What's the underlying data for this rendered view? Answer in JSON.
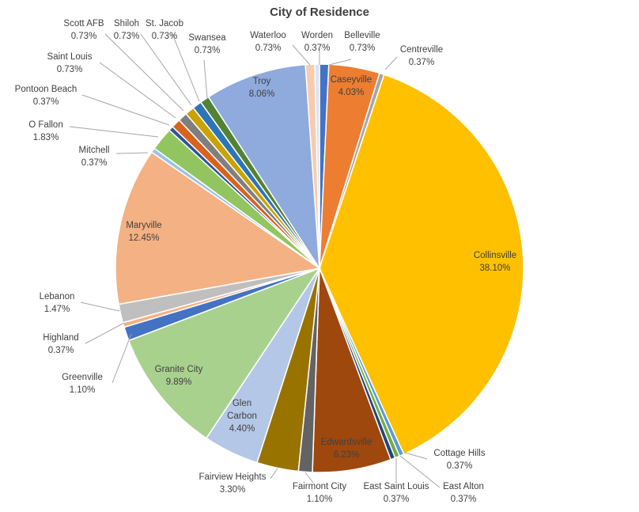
{
  "chart_data": {
    "type": "pie",
    "title": "City of Residence",
    "slices": [
      {
        "name": "Belleville",
        "value": 0.73,
        "label": "0.73%",
        "color": "#4472c4"
      },
      {
        "name": "Caseyville",
        "value": 4.03,
        "label": "4.03%",
        "color": "#ed7d31"
      },
      {
        "name": "Centreville",
        "value": 0.37,
        "label": "0.37%",
        "color": "#a5a5a5"
      },
      {
        "name": "Collinsville",
        "value": 38.1,
        "label": "38.10%",
        "color": "#ffc000"
      },
      {
        "name": "Cottage Hills",
        "value": 0.37,
        "label": "0.37%",
        "color": "#5b9bd5"
      },
      {
        "name": "East Alton",
        "value": 0.37,
        "label": "0.37%",
        "color": "#70ad47"
      },
      {
        "name": "East Saint Louis",
        "value": 0.37,
        "label": "0.37%",
        "color": "#264478"
      },
      {
        "name": "Edwardsville",
        "value": 6.23,
        "label": "6.23%",
        "color": "#9e480e"
      },
      {
        "name": "Fairmont City",
        "value": 1.1,
        "label": "1.10%",
        "color": "#636363"
      },
      {
        "name": "Fairview Heights",
        "value": 3.3,
        "label": "3.30%",
        "color": "#997300"
      },
      {
        "name": "Glen Carbon",
        "value": 4.4,
        "label": "4.40%",
        "color": "#b4c7e7"
      },
      {
        "name": "Granite City",
        "value": 9.89,
        "label": "9.89%",
        "color": "#a9d18e"
      },
      {
        "name": "Greenville",
        "value": 1.1,
        "label": "1.10%",
        "color": "#4472c4"
      },
      {
        "name": "Highland",
        "value": 0.37,
        "label": "0.37%",
        "color": "#f4b183"
      },
      {
        "name": "Lebanon",
        "value": 1.47,
        "label": "1.47%",
        "color": "#bfbfbf"
      },
      {
        "name": "Maryville",
        "value": 12.45,
        "label": "12.45%",
        "color": "#f4b183"
      },
      {
        "name": "Mitchell",
        "value": 0.37,
        "label": "0.37%",
        "color": "#9dc3e6"
      },
      {
        "name": "O Fallon",
        "value": 1.83,
        "label": "1.83%",
        "color": "#92c560"
      },
      {
        "name": "Pontoon Beach",
        "value": 0.37,
        "label": "0.37%",
        "color": "#2f5597"
      },
      {
        "name": "Saint Louis",
        "value": 0.73,
        "label": "0.73%",
        "color": "#d9621d"
      },
      {
        "name": "Scott AFB",
        "value": 0.73,
        "label": "0.73%",
        "color": "#7f7f7f"
      },
      {
        "name": "Shiloh",
        "value": 0.73,
        "label": "0.73%",
        "color": "#c9a300"
      },
      {
        "name": "St. Jacob",
        "value": 0.73,
        "label": "0.73%",
        "color": "#2e75b6"
      },
      {
        "name": "Swansea",
        "value": 0.73,
        "label": "0.73%",
        "color": "#548235"
      },
      {
        "name": "Troy",
        "value": 8.06,
        "label": "8.06%",
        "color": "#8faadc"
      },
      {
        "name": "Waterloo",
        "value": 0.73,
        "label": "0.73%",
        "color": "#f8cbad"
      },
      {
        "name": "Worden",
        "value": 0.37,
        "label": "0.37%",
        "color": "#dae3f3"
      }
    ],
    "legend": "none",
    "data_labels": "category name and percentage"
  }
}
